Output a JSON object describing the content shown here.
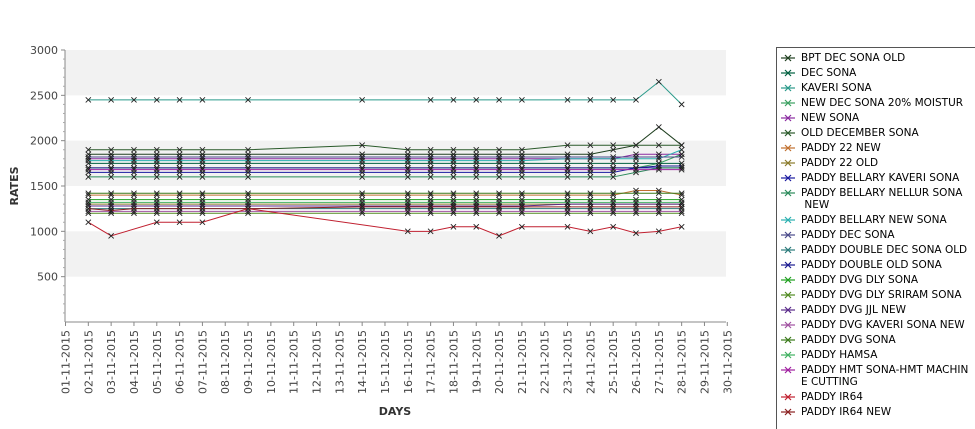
{
  "chart_data": {
    "type": "line",
    "title": "",
    "xlabel": "DAYS",
    "ylabel": "RATES",
    "ylim": [
      0,
      3000
    ],
    "yticks": [
      500,
      1000,
      1500,
      2000,
      2500,
      3000
    ],
    "grid": true,
    "legend_position": "right",
    "categories": [
      "01-11-2015",
      "02-11-2015",
      "03-11-2015",
      "04-11-2015",
      "05-11-2015",
      "06-11-2015",
      "07-11-2015",
      "08-11-2015",
      "09-11-2015",
      "10-11-2015",
      "11-11-2015",
      "12-11-2015",
      "13-11-2015",
      "14-11-2015",
      "15-11-2015",
      "16-11-2015",
      "17-11-2015",
      "18-11-2015",
      "19-11-2015",
      "20-11-2015",
      "21-11-2015",
      "22-11-2015",
      "23-11-2015",
      "24-11-2015",
      "25-11-2015",
      "26-11-2015",
      "27-11-2015",
      "28-11-2015",
      "29-11-2015",
      "30-11-2015"
    ],
    "series": [
      {
        "name": "BPT DEC SONA OLD",
        "color": "#1f3f1f",
        "values": [
          null,
          1850,
          1850,
          1850,
          1850,
          1850,
          1850,
          null,
          1850,
          null,
          null,
          null,
          null,
          1850,
          null,
          1850,
          1850,
          1850,
          1850,
          1850,
          1850,
          null,
          1850,
          1850,
          1900,
          1950,
          2150,
          1950,
          null,
          null
        ]
      },
      {
        "name": "DEC SONA",
        "color": "#006040",
        "values": [
          null,
          1750,
          1750,
          1750,
          1750,
          1750,
          1750,
          null,
          1750,
          null,
          null,
          null,
          null,
          1750,
          null,
          1750,
          1750,
          1750,
          1750,
          1750,
          1750,
          null,
          1750,
          1750,
          1750,
          1750,
          1750,
          1750,
          null,
          null
        ]
      },
      {
        "name": "KAVERI SONA",
        "color": "#2a9a8a",
        "values": [
          null,
          2450,
          2450,
          2450,
          2450,
          2450,
          2450,
          null,
          2450,
          null,
          null,
          null,
          null,
          2450,
          null,
          null,
          2450,
          2450,
          2450,
          2450,
          2450,
          null,
          2450,
          2450,
          2450,
          2450,
          2650,
          2400,
          null,
          null
        ]
      },
      {
        "name": "NEW DEC SONA 20% MOISTUR",
        "color": "#3aa060",
        "values": [
          null,
          1700,
          1700,
          1700,
          1700,
          1700,
          1700,
          null,
          1700,
          null,
          null,
          null,
          null,
          1700,
          null,
          1700,
          1700,
          1700,
          1700,
          1700,
          1700,
          null,
          1700,
          1700,
          1700,
          1700,
          1750,
          1850,
          null,
          null
        ]
      },
      {
        "name": "NEW SONA",
        "color": "#8a2aa0",
        "values": [
          null,
          1800,
          1800,
          1800,
          1800,
          1800,
          1800,
          null,
          1800,
          null,
          null,
          null,
          null,
          1800,
          null,
          1800,
          1800,
          1800,
          1800,
          1800,
          1800,
          null,
          1800,
          1800,
          1800,
          1850,
          1850,
          1850,
          null,
          null
        ]
      },
      {
        "name": "OLD DECEMBER SONA",
        "color": "#2a5a2a",
        "values": [
          null,
          1900,
          1900,
          1900,
          1900,
          1900,
          1900,
          null,
          1900,
          null,
          null,
          null,
          null,
          1950,
          null,
          1900,
          1900,
          1900,
          1900,
          1900,
          1900,
          null,
          1950,
          1950,
          1950,
          1950,
          1950,
          1950,
          null,
          null
        ]
      },
      {
        "name": "PADDY 22 NEW",
        "color": "#c07030",
        "values": [
          null,
          1400,
          1400,
          1400,
          1400,
          1400,
          1400,
          null,
          1400,
          null,
          null,
          null,
          null,
          1400,
          null,
          1400,
          1400,
          1400,
          1400,
          1400,
          1400,
          null,
          1400,
          1400,
          1400,
          1450,
          1450,
          1400,
          null,
          null
        ]
      },
      {
        "name": "PADDY 22 OLD",
        "color": "#8a7a2a",
        "values": [
          null,
          1300,
          1300,
          1300,
          1300,
          1300,
          1300,
          null,
          1300,
          null,
          null,
          null,
          null,
          1300,
          null,
          1300,
          1300,
          1300,
          1300,
          1300,
          1300,
          null,
          1300,
          1300,
          1300,
          1300,
          1300,
          1300,
          null,
          null
        ]
      },
      {
        "name": "PADDY BELLARY KAVERI SONA",
        "color": "#1a1aa0",
        "values": [
          null,
          1650,
          1650,
          1650,
          1650,
          1650,
          1650,
          null,
          1650,
          null,
          null,
          null,
          null,
          1650,
          null,
          1650,
          1650,
          1650,
          1650,
          1650,
          1650,
          null,
          1650,
          1650,
          1650,
          1700,
          1700,
          1700,
          null,
          null
        ]
      },
      {
        "name": "PADDY BELLARY NELLUR SONA\n NEW",
        "color": "#2a8a5a",
        "values": [
          null,
          1600,
          1600,
          1600,
          1600,
          1600,
          1600,
          null,
          1600,
          null,
          null,
          null,
          null,
          1600,
          null,
          1600,
          1600,
          1600,
          1600,
          1600,
          1600,
          null,
          1600,
          1600,
          1600,
          1650,
          1700,
          1700,
          null,
          null
        ]
      },
      {
        "name": "PADDY BELLARY NEW SONA",
        "color": "#2ab0b0",
        "values": [
          null,
          1780,
          1780,
          1780,
          1780,
          1780,
          1780,
          null,
          1780,
          null,
          null,
          null,
          null,
          1780,
          null,
          1780,
          1780,
          1780,
          1780,
          1780,
          1780,
          null,
          1800,
          1800,
          1800,
          1800,
          1800,
          1900,
          null,
          null
        ]
      },
      {
        "name": "PADDY DEC SONA",
        "color": "#4a4a8a",
        "values": [
          null,
          1820,
          1820,
          1820,
          1820,
          1820,
          1820,
          null,
          1820,
          null,
          null,
          null,
          null,
          1820,
          null,
          1820,
          1820,
          1820,
          1820,
          1820,
          1820,
          null,
          1820,
          1820,
          1820,
          1820,
          1820,
          1820,
          null,
          null
        ]
      },
      {
        "name": "PADDY DOUBLE DEC SONA OLD",
        "color": "#2a7a7a",
        "values": [
          null,
          1250,
          1250,
          1250,
          1250,
          1250,
          1250,
          null,
          1250,
          null,
          null,
          null,
          null,
          1250,
          null,
          1250,
          1250,
          1250,
          1250,
          1250,
          1250,
          null,
          1250,
          1250,
          1250,
          1250,
          1250,
          1250,
          null,
          null
        ]
      },
      {
        "name": "PADDY DOUBLE OLD SONA",
        "color": "#1a1a90",
        "values": [
          null,
          1700,
          1700,
          1700,
          1700,
          1700,
          1700,
          null,
          1700,
          null,
          null,
          null,
          null,
          1700,
          null,
          1700,
          1700,
          1700,
          1700,
          1700,
          1700,
          null,
          1700,
          1700,
          1700,
          1700,
          1720,
          1720,
          null,
          null
        ]
      },
      {
        "name": "PADDY DVG DLY SONA",
        "color": "#20a020",
        "values": [
          null,
          1350,
          1350,
          1350,
          1350,
          1350,
          1350,
          null,
          1350,
          null,
          null,
          null,
          null,
          1350,
          null,
          1350,
          1350,
          1350,
          1350,
          1350,
          1350,
          null,
          1350,
          1350,
          1350,
          1350,
          1350,
          1350,
          null,
          null
        ]
      },
      {
        "name": "PADDY DVG DLY SRIRAM SONA",
        "color": "#508a20",
        "values": [
          null,
          1200,
          1200,
          1200,
          1200,
          1200,
          1200,
          null,
          1200,
          null,
          null,
          null,
          null,
          1200,
          null,
          1200,
          1200,
          1200,
          1200,
          1200,
          1200,
          null,
          1200,
          1200,
          1200,
          1200,
          1200,
          1200,
          null,
          null
        ]
      },
      {
        "name": "PADDY DVG JJL NEW",
        "color": "#5a2a8a",
        "values": [
          null,
          1280,
          1280,
          1280,
          1280,
          1280,
          1280,
          null,
          1280,
          null,
          null,
          null,
          null,
          1280,
          null,
          1280,
          1280,
          1280,
          1280,
          1280,
          1280,
          null,
          1300,
          1300,
          1300,
          1300,
          1300,
          1300,
          null,
          null
        ]
      },
      {
        "name": "PADDY DVG KAVERI SONA NEW",
        "color": "#a050a0",
        "values": [
          null,
          1220,
          1220,
          1220,
          1220,
          1220,
          1220,
          null,
          1220,
          null,
          null,
          null,
          null,
          1220,
          null,
          1220,
          1220,
          1220,
          1220,
          1220,
          1220,
          null,
          1220,
          1220,
          1220,
          1220,
          1220,
          1220,
          null,
          null
        ]
      },
      {
        "name": "PADDY DVG SONA",
        "color": "#3a7a1a",
        "values": [
          null,
          1420,
          1420,
          1420,
          1420,
          1420,
          1420,
          null,
          1420,
          null,
          null,
          null,
          null,
          1420,
          null,
          1420,
          1420,
          1420,
          1420,
          1420,
          1420,
          null,
          1420,
          1420,
          1420,
          1420,
          1420,
          1420,
          null,
          null
        ]
      },
      {
        "name": "PADDY HAMSA",
        "color": "#40b060",
        "values": [
          null,
          1320,
          1320,
          1320,
          1320,
          1320,
          1320,
          null,
          1320,
          null,
          null,
          null,
          null,
          1320,
          null,
          1320,
          1320,
          1320,
          1320,
          1320,
          1320,
          null,
          1320,
          1320,
          1320,
          1320,
          1320,
          1320,
          null,
          null
        ]
      },
      {
        "name": "PADDY HMT SONA-HMT MACHIN\nE CUTTING",
        "color": "#a020a0",
        "values": [
          null,
          1680,
          1680,
          1680,
          1680,
          1680,
          1680,
          null,
          1680,
          null,
          null,
          null,
          null,
          1680,
          null,
          1680,
          1680,
          1680,
          1680,
          1680,
          1680,
          null,
          1680,
          1680,
          1680,
          1680,
          1680,
          1680,
          null,
          null
        ]
      },
      {
        "name": "PADDY IR64",
        "color": "#c02030",
        "values": [
          null,
          1100,
          950,
          null,
          1100,
          1100,
          1100,
          null,
          1250,
          null,
          null,
          null,
          null,
          null,
          null,
          1000,
          1000,
          1050,
          1050,
          950,
          1050,
          null,
          1050,
          1000,
          1050,
          980,
          1000,
          1050,
          null,
          null
        ]
      },
      {
        "name": "PADDY IR64 NEW",
        "color": "#8a2020",
        "values": [
          null,
          1250,
          1230,
          1250,
          1250,
          1250,
          1250,
          null,
          1250,
          null,
          null,
          null,
          null,
          1270,
          null,
          1270,
          1270,
          1270,
          1270,
          1270,
          1270,
          null,
          1270,
          1270,
          1270,
          1270,
          1270,
          1270,
          null,
          null
        ]
      }
    ]
  }
}
